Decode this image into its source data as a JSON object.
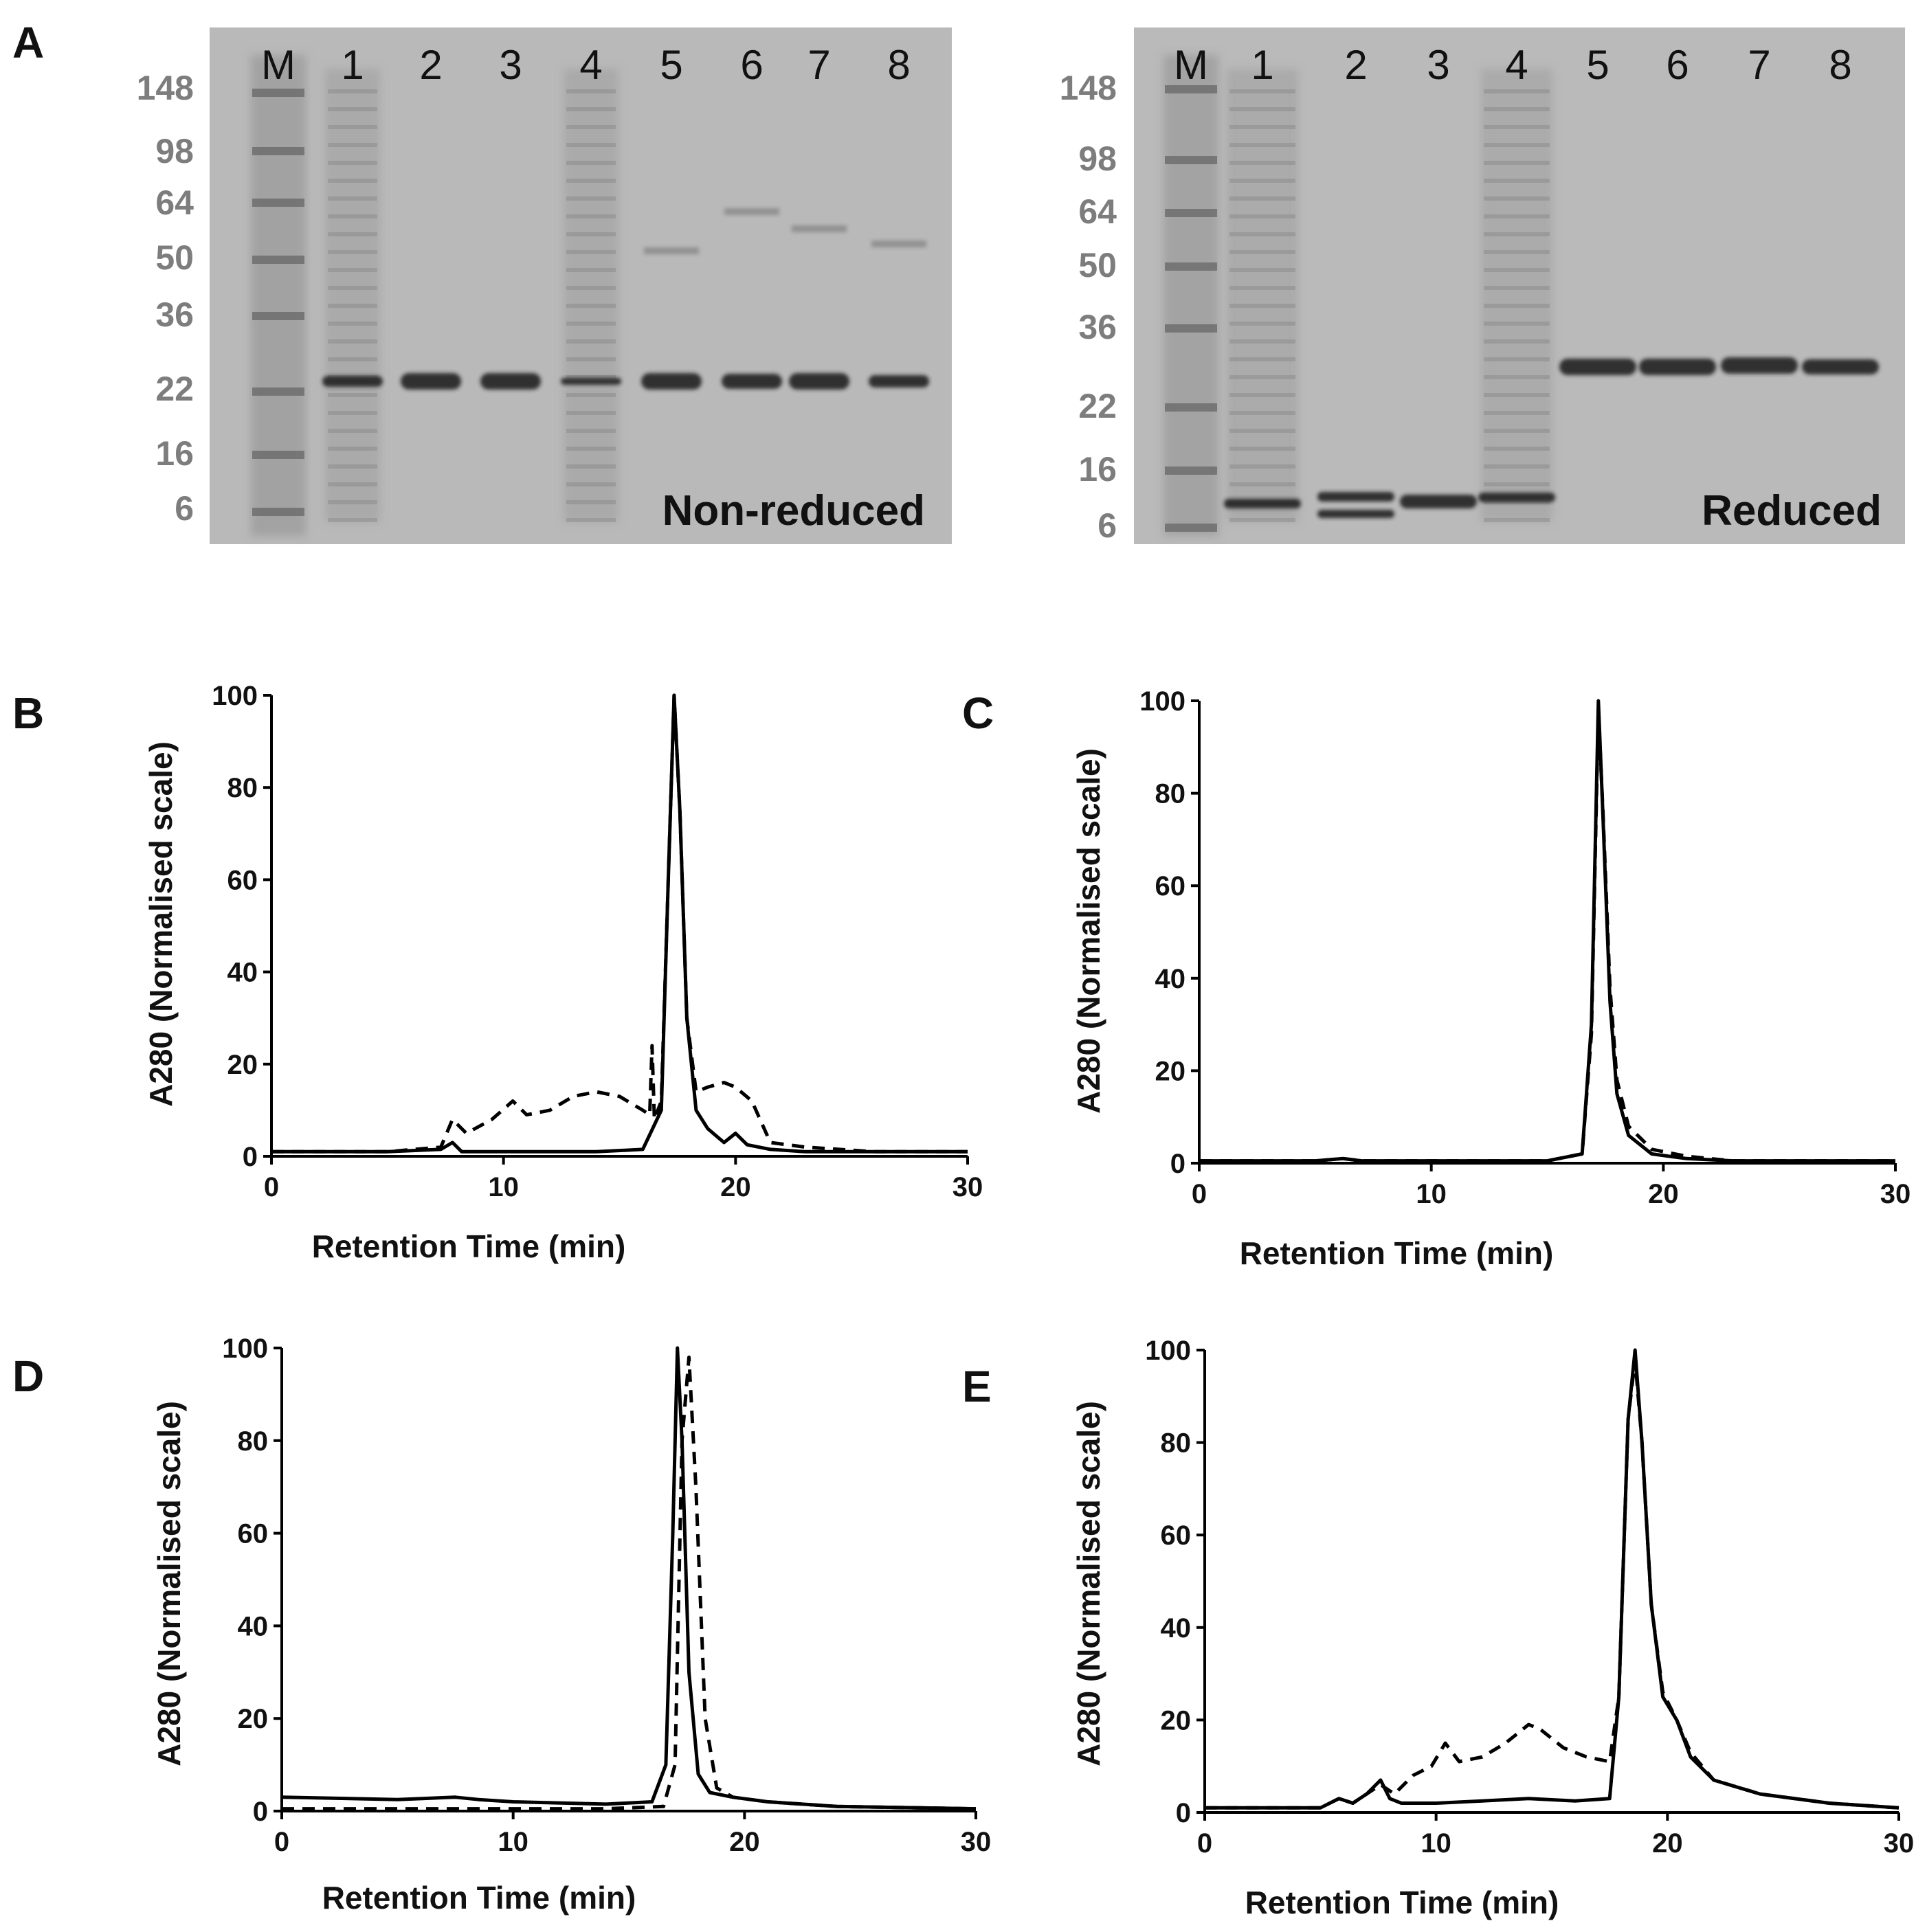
{
  "figure": {
    "panel_a_label": "A",
    "gels": [
      {
        "caption": "Non-reduced",
        "lanes": [
          "M",
          "1",
          "2",
          "3",
          "4",
          "5",
          "6",
          "7",
          "8"
        ],
        "markers_kda": [
          "148",
          "98",
          "64",
          "50",
          "36",
          "22",
          "16",
          "6"
        ],
        "main_band_kda": 22,
        "colors": {
          "gel": "#b9b9b9",
          "band": "#2a2a2a"
        }
      },
      {
        "caption": "Reduced",
        "lanes": [
          "M",
          "1",
          "2",
          "3",
          "4",
          "5",
          "6",
          "7",
          "8"
        ],
        "markers_kda": [
          "148",
          "98",
          "64",
          "50",
          "36",
          "22",
          "16",
          "6"
        ],
        "main_band_kda": 28,
        "colors": {
          "gel": "#bababa",
          "band": "#2a2a2a"
        }
      }
    ]
  },
  "chart_data": [
    {
      "panel": "B",
      "type": "line",
      "xlabel": "Retention Time (min)",
      "ylabel": "A280 (Normalised scale)",
      "xlim": [
        0,
        30
      ],
      "ylim": [
        0,
        100
      ],
      "xticks": [
        "0",
        "10",
        "20",
        "30"
      ],
      "yticks": [
        "0",
        "20",
        "40",
        "60",
        "80",
        "100"
      ],
      "series": [
        {
          "name": "solid",
          "style": "solid",
          "x": [
            0,
            5,
            7.3,
            7.8,
            8.2,
            10,
            12,
            14,
            16,
            16.8,
            17.1,
            17.35,
            17.6,
            17.9,
            18.3,
            18.8,
            19.5,
            20,
            20.5,
            21.5,
            23,
            26,
            30
          ],
          "y": [
            1,
            1,
            1.5,
            3,
            1,
            1,
            1,
            1,
            1.5,
            10,
            60,
            100,
            75,
            30,
            10,
            6,
            3,
            5,
            2.5,
            1.5,
            1,
            1,
            1
          ]
        },
        {
          "name": "dashed",
          "style": "dashed",
          "x": [
            0,
            5,
            7.3,
            7.8,
            8.4,
            9.5,
            10.4,
            11,
            12,
            13,
            14,
            15,
            16,
            16.3,
            16.4,
            16.5,
            16.8,
            17.1,
            17.35,
            17.6,
            17.9,
            18.3,
            18.8,
            19.5,
            20,
            20.7,
            21.5,
            23,
            26,
            30
          ],
          "y": [
            1,
            1,
            2,
            8,
            5,
            8,
            12,
            9,
            10,
            13,
            14,
            13,
            10,
            9,
            24,
            8,
            12,
            60,
            100,
            75,
            30,
            14,
            15,
            16,
            15,
            12,
            3,
            2,
            1,
            1
          ]
        }
      ]
    },
    {
      "panel": "C",
      "type": "line",
      "xlabel": "Retention Time (min)",
      "ylabel": "A280 (Normalised scale)",
      "xlim": [
        0,
        30
      ],
      "ylim": [
        0,
        100
      ],
      "xticks": [
        "0",
        "10",
        "20",
        "30"
      ],
      "yticks": [
        "0",
        "20",
        "40",
        "60",
        "80",
        "100"
      ],
      "series": [
        {
          "name": "solid",
          "style": "solid",
          "x": [
            0,
            5,
            6.2,
            7,
            10,
            15,
            16.5,
            16.9,
            17.2,
            17.4,
            17.7,
            18,
            18.5,
            19.5,
            21,
            23,
            30
          ],
          "y": [
            0.5,
            0.5,
            1,
            0.5,
            0.5,
            0.5,
            2,
            30,
            100,
            75,
            35,
            15,
            6,
            2,
            1,
            0.5,
            0.5
          ]
        },
        {
          "name": "dashed",
          "style": "dashed",
          "x": [
            0,
            5,
            6.2,
            7,
            10,
            15,
            16.5,
            16.9,
            17.2,
            17.4,
            17.7,
            18,
            18.5,
            19.5,
            21,
            23,
            30
          ],
          "y": [
            0.5,
            0.5,
            1,
            0.5,
            0.5,
            0.5,
            2,
            28,
            98,
            76,
            38,
            18,
            8,
            3,
            1.5,
            0.5,
            0.5
          ]
        }
      ]
    },
    {
      "panel": "D",
      "type": "line",
      "xlabel": "Retention Time (min)",
      "ylabel": "A280 (Normalised scale)",
      "xlim": [
        0,
        30
      ],
      "ylim": [
        0,
        100
      ],
      "xticks": [
        "0",
        "10",
        "20",
        "30"
      ],
      "yticks": [
        "0",
        "20",
        "40",
        "60",
        "80",
        "100"
      ],
      "series": [
        {
          "name": "solid",
          "style": "solid",
          "x": [
            0,
            5,
            7.5,
            8.5,
            10,
            14,
            16,
            16.6,
            16.9,
            17.1,
            17.3,
            17.6,
            18,
            18.5,
            19.5,
            21,
            24,
            30
          ],
          "y": [
            3,
            2.5,
            3,
            2.5,
            2,
            1.5,
            2,
            10,
            60,
            100,
            80,
            30,
            8,
            4,
            3,
            2,
            1,
            0.5
          ]
        },
        {
          "name": "dashed",
          "style": "dashed",
          "x": [
            0,
            5,
            10,
            14,
            16.5,
            17,
            17.3,
            17.6,
            17.9,
            18.3,
            18.8,
            19.5,
            21,
            24,
            30
          ],
          "y": [
            0.5,
            0.5,
            0.5,
            0.5,
            1,
            10,
            80,
            98,
            70,
            20,
            5,
            3,
            2,
            1,
            0.5
          ]
        }
      ]
    },
    {
      "panel": "E",
      "type": "line",
      "xlabel": "Retention Time (min)",
      "ylabel": "A280 (Normalised scale)",
      "xlim": [
        0,
        30
      ],
      "ylim": [
        0,
        100
      ],
      "xticks": [
        "0",
        "10",
        "20",
        "30"
      ],
      "yticks": [
        "0",
        "20",
        "40",
        "60",
        "80",
        "100"
      ],
      "series": [
        {
          "name": "solid",
          "style": "solid",
          "x": [
            0,
            5,
            5.8,
            6.4,
            7,
            7.6,
            8,
            8.5,
            10,
            12,
            14,
            16,
            17.5,
            17.9,
            18.3,
            18.6,
            18.9,
            19.3,
            19.8,
            20.4,
            21,
            22,
            24,
            27,
            30
          ],
          "y": [
            1,
            1,
            3,
            2,
            4,
            7,
            3,
            2,
            2,
            2.5,
            3,
            2.5,
            3,
            25,
            85,
            100,
            80,
            45,
            25,
            20,
            12,
            7,
            4,
            2,
            1
          ]
        },
        {
          "name": "dashed",
          "style": "dashed",
          "x": [
            0,
            5,
            5.8,
            6.4,
            7,
            7.6,
            8.2,
            9,
            9.8,
            10.4,
            11,
            12,
            13,
            14,
            14.5,
            15.5,
            16.5,
            17.5,
            17.9,
            18.3,
            18.6,
            18.9,
            19.3,
            19.8,
            20.4,
            21,
            22,
            24,
            27,
            30
          ],
          "y": [
            1,
            1,
            3,
            2,
            4,
            6,
            4,
            8,
            10,
            15,
            11,
            12,
            15,
            19,
            18,
            14,
            12,
            11,
            25,
            85,
            98,
            80,
            45,
            26,
            20,
            13,
            7,
            4,
            2,
            1
          ]
        }
      ]
    }
  ]
}
